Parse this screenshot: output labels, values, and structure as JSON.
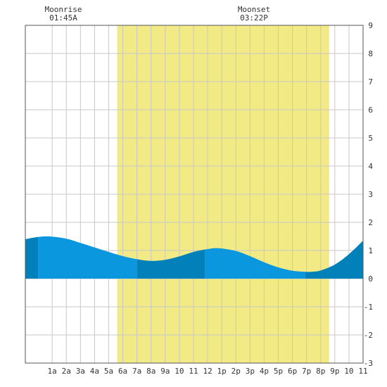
{
  "chart_data": {
    "type": "area",
    "moonrise": {
      "label": "Moonrise",
      "time": "01:45A",
      "hour": 1.75
    },
    "moonset": {
      "label": "Moonset",
      "time": "03:22P",
      "hour": 15.37
    },
    "daylight": {
      "start_hour": 5.6,
      "end_hour": 20.6
    },
    "xlim": [
      -0.9,
      23.0
    ],
    "ylim": [
      -3,
      9
    ],
    "x_ticks": [
      {
        "hour": 1,
        "label": "1a"
      },
      {
        "hour": 2,
        "label": "2a"
      },
      {
        "hour": 3,
        "label": "3a"
      },
      {
        "hour": 4,
        "label": "4a"
      },
      {
        "hour": 5,
        "label": "5a"
      },
      {
        "hour": 6,
        "label": "6a"
      },
      {
        "hour": 7,
        "label": "7a"
      },
      {
        "hour": 8,
        "label": "8a"
      },
      {
        "hour": 9,
        "label": "9a"
      },
      {
        "hour": 10,
        "label": "10"
      },
      {
        "hour": 11,
        "label": "11"
      },
      {
        "hour": 12,
        "label": "12"
      },
      {
        "hour": 13,
        "label": "1p"
      },
      {
        "hour": 14,
        "label": "2p"
      },
      {
        "hour": 15,
        "label": "3p"
      },
      {
        "hour": 16,
        "label": "4p"
      },
      {
        "hour": 17,
        "label": "5p"
      },
      {
        "hour": 18,
        "label": "6p"
      },
      {
        "hour": 19,
        "label": "7p"
      },
      {
        "hour": 20,
        "label": "8p"
      },
      {
        "hour": 21,
        "label": "9p"
      },
      {
        "hour": 22,
        "label": "10"
      },
      {
        "hour": 23,
        "label": "11"
      }
    ],
    "y_ticks": [
      9,
      8,
      7,
      6,
      5,
      4,
      3,
      2,
      1,
      0,
      -1,
      -2,
      -3
    ],
    "tide_series": {
      "x": [
        -0.9,
        0,
        0.8,
        2,
        3,
        4,
        5,
        6,
        7,
        8,
        9,
        10,
        11,
        12,
        12.8,
        14,
        15,
        16,
        17,
        18,
        19,
        19.5,
        20,
        21,
        22,
        23
      ],
      "y": [
        1.4,
        1.48,
        1.5,
        1.42,
        1.27,
        1.11,
        0.95,
        0.8,
        0.69,
        0.63,
        0.67,
        0.79,
        0.95,
        1.05,
        1.08,
        0.98,
        0.8,
        0.58,
        0.4,
        0.28,
        0.24,
        0.25,
        0.29,
        0.5,
        0.87,
        1.35
      ]
    },
    "tide_bands": [
      {
        "from": -0.9,
        "to": 0.0,
        "shade": "dark"
      },
      {
        "from": 0.0,
        "to": 7.0,
        "shade": "light"
      },
      {
        "from": 7.0,
        "to": 11.8,
        "shade": "dark"
      },
      {
        "from": 11.8,
        "to": 18.9,
        "shade": "light"
      },
      {
        "from": 18.9,
        "to": 23.0,
        "shade": "dark"
      }
    ],
    "grid": true,
    "colors": {
      "daylight": "#f2ea84",
      "tide_light": "#0a97dd",
      "tide_dark": "#0280ba",
      "grid": "#c8c8c8",
      "axis": "#555555",
      "text": "#333333"
    }
  }
}
